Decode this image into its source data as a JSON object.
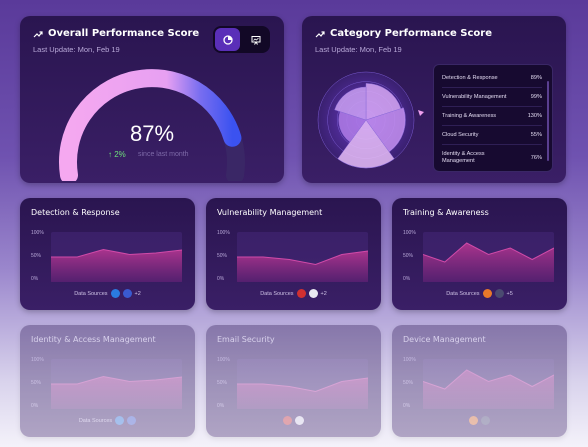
{
  "overall": {
    "title": "Overall Performance Score",
    "last_update": "Last Update: Mon, Feb 19",
    "score": "87%",
    "score_fraction": 0.87,
    "change": "↑ 2%",
    "change_note": "since last month",
    "colors": {
      "arc": "#f5a8f0",
      "arc_end": "#3b52f0",
      "change": "#6ee07a"
    },
    "toggle_icons": [
      "pie-chart-icon",
      "presentation-icon"
    ]
  },
  "category": {
    "title": "Category Performance Score",
    "last_update": "Last Update: Mon, Feb 19",
    "items": [
      {
        "name": "Detection & Response",
        "value": "89%"
      },
      {
        "name": "Vulnerability Management",
        "value": "99%"
      },
      {
        "name": "Training & Awareness",
        "value": "130%"
      },
      {
        "name": "Cloud Security",
        "value": "55%"
      },
      {
        "name": "Identity & Access Management",
        "value": "76%"
      }
    ]
  },
  "chart_data": [
    {
      "type": "area",
      "title": "Detection & Response",
      "yticks": [
        "100%",
        "50%",
        "0%"
      ],
      "ylim": [
        0,
        100
      ],
      "x": [
        0,
        1,
        2,
        3,
        4,
        5
      ],
      "values": [
        50,
        50,
        65,
        55,
        58,
        64
      ],
      "sources_label": "Data Sources",
      "sources_more": "+2",
      "source_icons": [
        "shield-icon",
        "badge-icon"
      ],
      "source_colors": [
        "#2a7be0",
        "#3a5ad0"
      ]
    },
    {
      "type": "area",
      "title": "Vulnerability Management",
      "yticks": [
        "100%",
        "50%",
        "0%"
      ],
      "ylim": [
        0,
        100
      ],
      "x": [
        0,
        1,
        2,
        3,
        4,
        5
      ],
      "values": [
        50,
        50,
        45,
        35,
        55,
        62
      ],
      "sources_label": "Data Sources",
      "sources_more": "+2",
      "source_icons": [
        "slash-icon",
        "circle-c-icon"
      ],
      "source_colors": [
        "#d03030",
        "#e8e8f0"
      ]
    },
    {
      "type": "area",
      "title": "Training & Awareness",
      "yticks": [
        "100%",
        "50%",
        "0%"
      ],
      "ylim": [
        0,
        100
      ],
      "x": [
        0,
        1,
        2,
        3,
        4,
        5,
        6
      ],
      "values": [
        55,
        40,
        78,
        55,
        68,
        45,
        68
      ],
      "sources_label": "Data Sources",
      "sources_more": "+5",
      "source_icons": [
        "fox-icon",
        "shield-outline-icon"
      ],
      "source_colors": [
        "#e8782a",
        "#4a4a70"
      ]
    },
    {
      "type": "area",
      "title": "Identity & Access Management",
      "yticks": [
        "100%",
        "50%",
        "0%"
      ],
      "ylim": [
        0,
        100
      ],
      "x": [
        0,
        1,
        2,
        3,
        4,
        5
      ],
      "values": [
        50,
        50,
        65,
        55,
        58,
        64
      ],
      "sources_label": "Data Sources",
      "sources_more": "",
      "source_icons": [
        "shield-icon",
        "badge-icon"
      ],
      "source_colors": [
        "#2a7be0",
        "#3a5ad0"
      ]
    },
    {
      "type": "area",
      "title": "Email Security",
      "yticks": [
        "100%",
        "50%",
        "0%"
      ],
      "ylim": [
        0,
        100
      ],
      "x": [
        0,
        1,
        2,
        3,
        4,
        5
      ],
      "values": [
        50,
        50,
        45,
        35,
        55,
        62
      ],
      "sources_label": "",
      "sources_more": "",
      "source_icons": [
        "slash-icon",
        "circle-c-icon"
      ],
      "source_colors": [
        "#d03030",
        "#e8e8f0"
      ]
    },
    {
      "type": "area",
      "title": "Device Management",
      "yticks": [
        "100%",
        "50%",
        "0%"
      ],
      "ylim": [
        0,
        100
      ],
      "x": [
        0,
        1,
        2,
        3,
        4,
        5,
        6
      ],
      "values": [
        55,
        40,
        78,
        55,
        68,
        45,
        68
      ],
      "sources_label": "",
      "sources_more": "",
      "source_icons": [
        "fox-icon",
        "shield-outline-icon"
      ],
      "source_colors": [
        "#e8782a",
        "#4a4a70"
      ]
    }
  ]
}
